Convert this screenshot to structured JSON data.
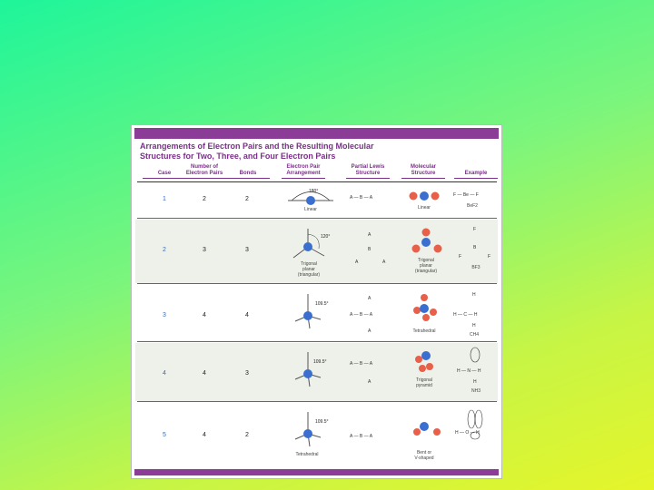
{
  "title": "Arrangements of Electron Pairs and the Resulting Molecular\nStructures for Two, Three, and Four Electron Pairs",
  "headers": {
    "case": "Case",
    "pairs": "Number of\nElectron Pairs",
    "bonds": "Bonds",
    "arrangement": "Electron Pair\nArrangement",
    "lewis": "Partial Lewis\nStructure",
    "molecular": "Molecular\nStructure",
    "example": "Example"
  },
  "rows": [
    {
      "case": "1",
      "pairs": "2",
      "bonds": "2",
      "angle": "180°",
      "arrangement": "Linear",
      "molecular": "Linear",
      "example": "BeF2",
      "lewis": [
        "A",
        "B",
        "A"
      ]
    },
    {
      "case": "2",
      "pairs": "3",
      "bonds": "3",
      "angle": "120°",
      "arrangement": "Trigonal\nplanar\n(triangular)",
      "molecular": "Trigonal\nplanar\n(triangular)",
      "example": "BF3",
      "lewis": [
        "A",
        "B",
        "A",
        "A"
      ]
    },
    {
      "case": "3",
      "pairs": "4",
      "bonds": "4",
      "angle": "109.5°",
      "arrangement": "",
      "molecular": "Tetrahedral",
      "example": "CH4",
      "lewis": [
        "A",
        "B",
        "A",
        "A",
        "A"
      ]
    },
    {
      "case": "4",
      "pairs": "4",
      "bonds": "3",
      "angle": "109.5°",
      "arrangement": "",
      "molecular": "Trigonal\npyramid",
      "example": "NH3",
      "lewis": [
        "A",
        "B",
        "A",
        "A"
      ]
    },
    {
      "case": "5",
      "pairs": "4",
      "bonds": "2",
      "angle": "109.5°",
      "arrangement": "Tetrahedral",
      "molecular": "Bent or\nV-shaped",
      "example": "",
      "lewis": [
        "A",
        "B",
        "A"
      ]
    }
  ],
  "example_atoms": {
    "be": "Be",
    "f": "F",
    "b": "B",
    "c": "C",
    "n": "N",
    "o": "O",
    "h": "H"
  },
  "colors": {
    "accent": "#8a3c96",
    "central_atom": "#3a6fd0",
    "outer_atom": "#e8604a",
    "case_number": "#2d6bc2"
  }
}
